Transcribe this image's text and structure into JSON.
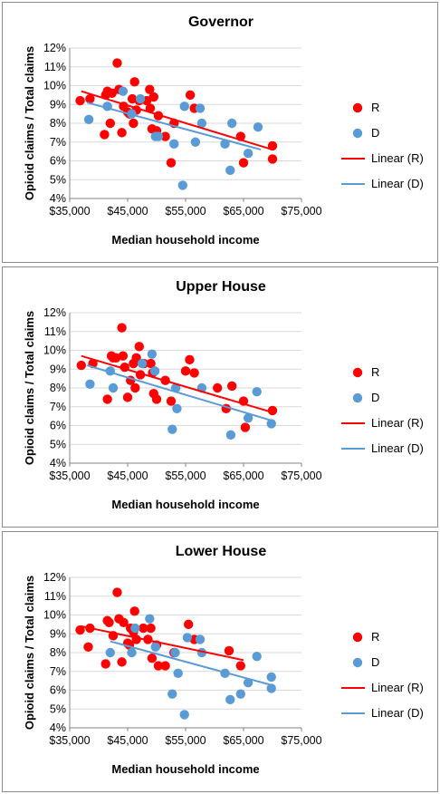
{
  "chart_data": [
    {
      "type": "scatter",
      "title": "Governor",
      "xlabel": "Median household income",
      "ylabel": "Opioid claims / Total claims",
      "xlim": [
        35000,
        75000
      ],
      "ylim": [
        0.04,
        0.12
      ],
      "xticks": [
        "$35,000",
        "$45,000",
        "$55,000",
        "$65,000",
        "$75,000"
      ],
      "yticks": [
        "4%",
        "5%",
        "6%",
        "7%",
        "8%",
        "9%",
        "10%",
        "11%",
        "12%"
      ],
      "legend": [
        "R",
        "D",
        "Linear (R)",
        "Linear (D)"
      ],
      "legend_position": "right",
      "grid": true,
      "series": [
        {
          "name": "R",
          "color": "#ff0000",
          "points": [
            [
              36800,
              0.092
            ],
            [
              38500,
              0.093
            ],
            [
              41000,
              0.074
            ],
            [
              41200,
              0.095
            ],
            [
              41500,
              0.097
            ],
            [
              42000,
              0.08
            ],
            [
              42300,
              0.096
            ],
            [
              43200,
              0.112
            ],
            [
              43500,
              0.098
            ],
            [
              44000,
              0.075
            ],
            [
              44300,
              0.089
            ],
            [
              45000,
              0.086
            ],
            [
              45300,
              0.085
            ],
            [
              45800,
              0.093
            ],
            [
              46000,
              0.08
            ],
            [
              46200,
              0.102
            ],
            [
              46500,
              0.087
            ],
            [
              47000,
              0.092
            ],
            [
              48300,
              0.092
            ],
            [
              48800,
              0.098
            ],
            [
              48900,
              0.088
            ],
            [
              49200,
              0.077
            ],
            [
              49500,
              0.094
            ],
            [
              50000,
              0.076
            ],
            [
              50300,
              0.084
            ],
            [
              51500,
              0.073
            ],
            [
              52500,
              0.059
            ],
            [
              53000,
              0.08
            ],
            [
              55800,
              0.095
            ],
            [
              56500,
              0.088
            ],
            [
              64500,
              0.073
            ],
            [
              65000,
              0.059
            ],
            [
              70000,
              0.068
            ],
            [
              70000,
              0.061
            ]
          ]
        },
        {
          "name": "D",
          "color": "#5b9bd5",
          "points": [
            [
              38300,
              0.082
            ],
            [
              41500,
              0.089
            ],
            [
              44200,
              0.097
            ],
            [
              45700,
              0.085
            ],
            [
              47200,
              0.093
            ],
            [
              49800,
              0.073
            ],
            [
              50300,
              0.073
            ],
            [
              53000,
              0.069
            ],
            [
              54500,
              0.047
            ],
            [
              54800,
              0.089
            ],
            [
              56700,
              0.07
            ],
            [
              57500,
              0.088
            ],
            [
              57800,
              0.08
            ],
            [
              61800,
              0.069
            ],
            [
              62700,
              0.055
            ],
            [
              63000,
              0.08
            ],
            [
              65800,
              0.064
            ],
            [
              67500,
              0.078
            ]
          ]
        }
      ],
      "trendlines": [
        {
          "name": "Linear (R)",
          "color": "#ff0000",
          "x": [
            37000,
            70000
          ],
          "y": [
            0.097,
            0.066
          ]
        },
        {
          "name": "Linear (D)",
          "color": "#5b9bd5",
          "x": [
            38000,
            68000
          ],
          "y": [
            0.091,
            0.066
          ]
        }
      ]
    },
    {
      "type": "scatter",
      "title": "Upper House",
      "xlabel": "Median household income",
      "ylabel": "Opioid claims / Total claims",
      "xlim": [
        35000,
        75000
      ],
      "ylim": [
        0.04,
        0.12
      ],
      "xticks": [
        "$35,000",
        "$45,000",
        "$55,000",
        "$65,000",
        "$75,000"
      ],
      "yticks": [
        "4%",
        "5%",
        "6%",
        "7%",
        "8%",
        "9%",
        "10%",
        "11%",
        "12%"
      ],
      "legend": [
        "R",
        "D",
        "Linear (R)",
        "Linear (D)"
      ],
      "legend_position": "right",
      "grid": true,
      "series": [
        {
          "name": "R",
          "color": "#ff0000",
          "points": [
            [
              37000,
              0.092
            ],
            [
              39000,
              0.093
            ],
            [
              41500,
              0.074
            ],
            [
              42200,
              0.097
            ],
            [
              42500,
              0.096
            ],
            [
              43000,
              0.096
            ],
            [
              44000,
              0.112
            ],
            [
              44200,
              0.097
            ],
            [
              44500,
              0.091
            ],
            [
              45000,
              0.075
            ],
            [
              45500,
              0.084
            ],
            [
              46000,
              0.093
            ],
            [
              46300,
              0.08
            ],
            [
              46500,
              0.096
            ],
            [
              47000,
              0.102
            ],
            [
              47200,
              0.087
            ],
            [
              47800,
              0.093
            ],
            [
              49000,
              0.093
            ],
            [
              49300,
              0.088
            ],
            [
              49500,
              0.077
            ],
            [
              50000,
              0.074
            ],
            [
              51500,
              0.084
            ],
            [
              52500,
              0.073
            ],
            [
              55000,
              0.089
            ],
            [
              55700,
              0.095
            ],
            [
              56500,
              0.088
            ],
            [
              60500,
              0.08
            ],
            [
              62000,
              0.069
            ],
            [
              63000,
              0.081
            ],
            [
              65000,
              0.073
            ],
            [
              65300,
              0.059
            ],
            [
              70000,
              0.068
            ]
          ]
        },
        {
          "name": "D",
          "color": "#5b9bd5",
          "points": [
            [
              38500,
              0.082
            ],
            [
              42000,
              0.089
            ],
            [
              42500,
              0.08
            ],
            [
              47500,
              0.093
            ],
            [
              49200,
              0.098
            ],
            [
              49700,
              0.089
            ],
            [
              52700,
              0.058
            ],
            [
              53300,
              0.08
            ],
            [
              53500,
              0.069
            ],
            [
              57800,
              0.08
            ],
            [
              62800,
              0.055
            ],
            [
              65800,
              0.064
            ],
            [
              67300,
              0.078
            ],
            [
              69800,
              0.061
            ]
          ]
        }
      ],
      "trendlines": [
        {
          "name": "Linear (R)",
          "color": "#ff0000",
          "x": [
            37000,
            70000
          ],
          "y": [
            0.097,
            0.067
          ]
        },
        {
          "name": "Linear (D)",
          "color": "#5b9bd5",
          "x": [
            38000,
            69500
          ],
          "y": [
            0.092,
            0.063
          ]
        }
      ]
    },
    {
      "type": "scatter",
      "title": "Lower House",
      "xlabel": "Median household income",
      "ylabel": "Opioid claims / Total claims",
      "xlim": [
        35000,
        75000
      ],
      "ylim": [
        0.04,
        0.12
      ],
      "xticks": [
        "$35,000",
        "$45,000",
        "$55,000",
        "$65,000",
        "$75,000"
      ],
      "yticks": [
        "4%",
        "5%",
        "6%",
        "7%",
        "8%",
        "9%",
        "10%",
        "11%",
        "12%"
      ],
      "legend": [
        "R",
        "D",
        "Linear (R)",
        "Linear (D)"
      ],
      "legend_position": "right",
      "grid": true,
      "series": [
        {
          "name": "R",
          "color": "#ff0000",
          "points": [
            [
              36800,
              0.092
            ],
            [
              38500,
              0.093
            ],
            [
              38200,
              0.083
            ],
            [
              41200,
              0.074
            ],
            [
              41500,
              0.097
            ],
            [
              41800,
              0.096
            ],
            [
              42500,
              0.089
            ],
            [
              43200,
              0.112
            ],
            [
              43500,
              0.098
            ],
            [
              44000,
              0.075
            ],
            [
              44300,
              0.096
            ],
            [
              45000,
              0.085
            ],
            [
              45300,
              0.084
            ],
            [
              45500,
              0.093
            ],
            [
              46000,
              0.091
            ],
            [
              46200,
              0.102
            ],
            [
              46500,
              0.087
            ],
            [
              47700,
              0.093
            ],
            [
              48500,
              0.087
            ],
            [
              49000,
              0.093
            ],
            [
              49200,
              0.077
            ],
            [
              50000,
              0.084
            ],
            [
              50300,
              0.073
            ],
            [
              51500,
              0.073
            ],
            [
              53000,
              0.08
            ],
            [
              55500,
              0.095
            ],
            [
              56500,
              0.087
            ],
            [
              62500,
              0.081
            ],
            [
              64500,
              0.073
            ]
          ]
        },
        {
          "name": "D",
          "color": "#5b9bd5",
          "points": [
            [
              42000,
              0.08
            ],
            [
              45700,
              0.08
            ],
            [
              46300,
              0.093
            ],
            [
              48800,
              0.098
            ],
            [
              49800,
              0.083
            ],
            [
              52700,
              0.058
            ],
            [
              53200,
              0.08
            ],
            [
              53700,
              0.069
            ],
            [
              54800,
              0.047
            ],
            [
              55300,
              0.088
            ],
            [
              57500,
              0.087
            ],
            [
              57800,
              0.08
            ],
            [
              61800,
              0.069
            ],
            [
              62700,
              0.055
            ],
            [
              64500,
              0.058
            ],
            [
              65800,
              0.064
            ],
            [
              67300,
              0.078
            ],
            [
              69800,
              0.067
            ],
            [
              69800,
              0.061
            ]
          ]
        }
      ],
      "trendlines": [
        {
          "name": "Linear (R)",
          "color": "#ff0000",
          "x": [
            37000,
            65000
          ],
          "y": [
            0.094,
            0.076
          ]
        },
        {
          "name": "Linear (D)",
          "color": "#5b9bd5",
          "x": [
            42000,
            69500
          ],
          "y": [
            0.086,
            0.063
          ]
        }
      ]
    }
  ]
}
